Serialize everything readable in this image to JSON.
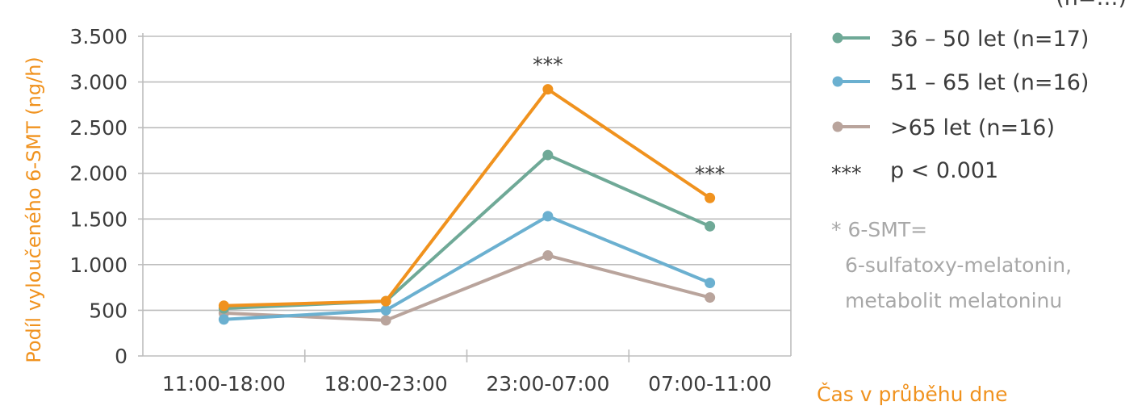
{
  "chart_data": {
    "type": "line",
    "ylabel": "Podíl vyloučeného 6-SMT (ng/h)",
    "xlabel": "Čas v průběhu dne",
    "categories": [
      "11:00-18:00",
      "18:00-23:00",
      "23:00-07:00",
      "07:00-11:00"
    ],
    "ylim": [
      0,
      3500
    ],
    "yticks": [
      0,
      500,
      1000,
      1500,
      2000,
      2500,
      3000,
      3500
    ],
    "ytick_labels": [
      "0",
      "500",
      "1.000",
      "1.500",
      "2.000",
      "2.500",
      "3.000",
      "3.500"
    ],
    "grid": true,
    "legend_position": "right",
    "series": [
      {
        "name": "(n=...)",
        "label_visible": "(n=…)",
        "color": "#f0921e",
        "values": [
          550,
          600,
          2920,
          1730
        ]
      },
      {
        "name": "36 – 50 let (n=17)",
        "color": "#6fa997",
        "values": [
          520,
          600,
          2200,
          1420
        ]
      },
      {
        "name": "51 – 65 let (n=16)",
        "color": "#6bb0d0",
        "values": [
          400,
          500,
          1530,
          800
        ]
      },
      {
        "name": ">65 let (n=16)",
        "color": "#b9a49c",
        "values": [
          470,
          390,
          1100,
          640
        ]
      }
    ],
    "annotations": [
      {
        "text": "***",
        "category_index": 2
      },
      {
        "text": "***",
        "category_index": 3
      }
    ],
    "legend_extra": {
      "stars": "***",
      "text": "p < 0.001"
    },
    "note": [
      "* 6-SMT=",
      "6-sulfatoxy-melatonin,",
      "metabolit melatoninu"
    ]
  }
}
